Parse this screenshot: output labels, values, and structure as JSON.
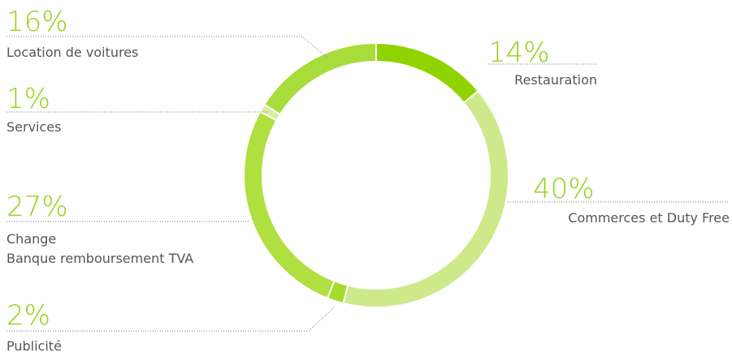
{
  "chart_data": {
    "type": "donut",
    "categories": [
      "Restauration",
      "Commerces et Duty Free",
      "Publicité",
      [
        "Change",
        "Banque remboursement TVA"
      ],
      "Services",
      "Location de voitures"
    ],
    "values": [
      14,
      40,
      2,
      27,
      1,
      16
    ],
    "value_labels": [
      "14%",
      "40%",
      "2%",
      "27%",
      "1%",
      "16%"
    ],
    "colors": [
      "#8fd400",
      "#cde98a",
      "#a6db2c",
      "#b0e040",
      "#d8efa0",
      "#a8dc3a"
    ]
  }
}
